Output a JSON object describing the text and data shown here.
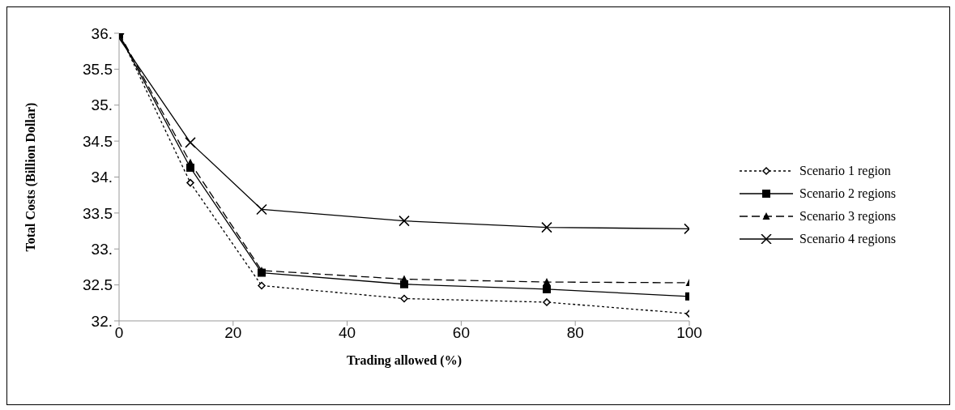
{
  "chart_data": {
    "type": "line",
    "xlabel": "Trading allowed (%)",
    "ylabel": "Total Costs (Billion Dollar)",
    "x": [
      0,
      12.5,
      25,
      50,
      75,
      100
    ],
    "xlim": [
      0,
      100
    ],
    "xticks": [
      0,
      20,
      40,
      60,
      80,
      100
    ],
    "ylim": [
      32,
      36
    ],
    "yticks": [
      {
        "value": 32,
        "label": "32."
      },
      32.5,
      {
        "value": 33,
        "label": "33."
      },
      33.5,
      {
        "value": 34,
        "label": "34."
      },
      34.5,
      {
        "value": 35,
        "label": "35."
      },
      35.5,
      {
        "value": 36,
        "label": "36."
      }
    ],
    "grid": false,
    "legend": "right",
    "series": [
      {
        "name": "Scenario 1 region",
        "color": "#000000",
        "marker": "diamond",
        "line_style": "dotted",
        "values": [
          36.0,
          33.92,
          32.49,
          32.31,
          32.26,
          32.1
        ]
      },
      {
        "name": "Scenario 2 regions",
        "color": "#000000",
        "marker": "square",
        "line_style": "solid",
        "values": [
          35.98,
          34.13,
          32.67,
          32.51,
          32.44,
          32.34
        ]
      },
      {
        "name": "Scenario 3 regions",
        "color": "#000000",
        "marker": "triangle",
        "line_style": "dashed",
        "values": [
          36.0,
          34.2,
          32.7,
          32.58,
          32.54,
          32.53
        ]
      },
      {
        "name": "Scenario 4  regions",
        "color": "#000000",
        "marker": "cross",
        "line_style": "solid",
        "values": [
          35.93,
          34.48,
          33.55,
          33.39,
          33.3,
          33.28
        ]
      }
    ]
  }
}
